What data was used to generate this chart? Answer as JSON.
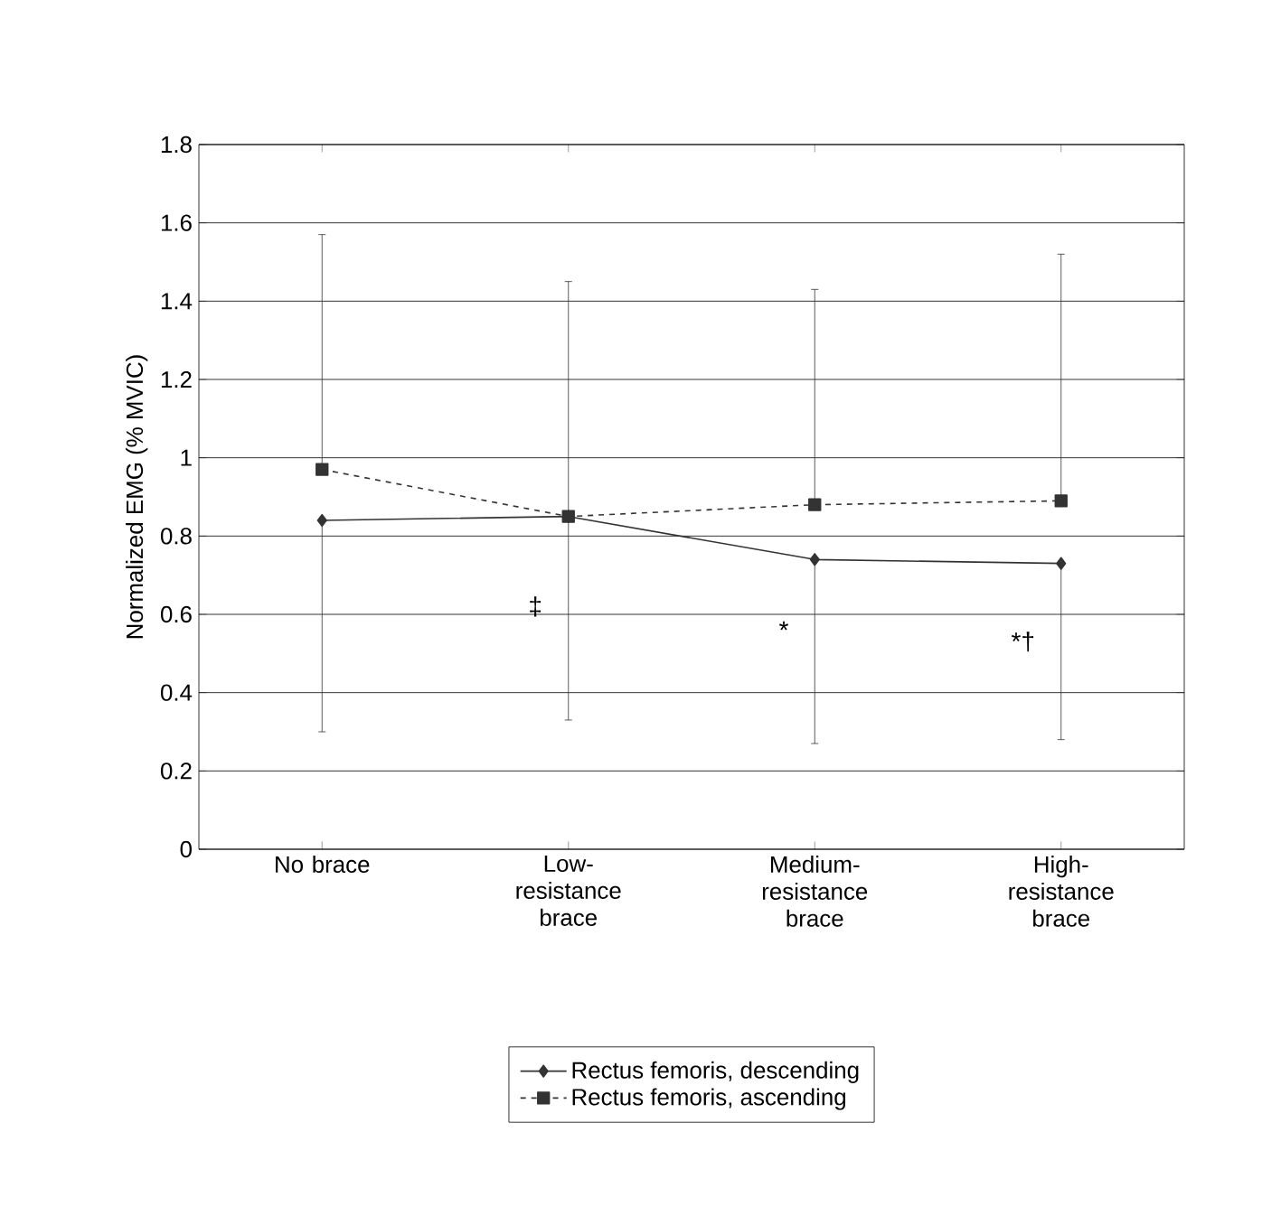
{
  "chart_data": {
    "type": "line",
    "ylabel": "Normalized EMG (% MVIC)",
    "categories": [
      "No brace",
      "Low-resistance brace",
      "Medium-resistance brace",
      "High-resistance brace"
    ],
    "series": [
      {
        "name": "Rectus femoris, descending",
        "color": "#333333",
        "marker": "diamond",
        "line_style": "solid",
        "values": [
          0.84,
          0.85,
          0.74,
          0.73
        ],
        "errors": [
          [
            0.3,
            0.84
          ],
          [
            0.33,
            0.85
          ],
          [
            0.27,
            0.74
          ],
          [
            0.28,
            0.73
          ]
        ]
      },
      {
        "name": "Rectus femoris, ascending",
        "color": "#333333",
        "marker": "square",
        "line_style": "dashed",
        "values": [
          0.97,
          0.85,
          0.88,
          0.89
        ],
        "errors": [
          [
            0.97,
            1.57
          ],
          [
            0.85,
            1.45
          ],
          [
            0.88,
            1.43
          ],
          [
            0.89,
            1.52
          ]
        ]
      }
    ],
    "ylim": [
      0,
      1.8
    ],
    "yticks": [
      0,
      0.2,
      0.4,
      0.6,
      0.8,
      1,
      1.2,
      1.4,
      1.6,
      1.8
    ],
    "grid": "y",
    "legend": "bottom",
    "annotations": [
      {
        "text": "‡",
        "x": "Low-resistance brace",
        "y": 0.62
      },
      {
        "text": "*",
        "x": "Medium-resistance brace",
        "y": 0.56
      },
      {
        "text": "*†",
        "x": "High-resistance brace",
        "y": 0.53
      }
    ]
  }
}
